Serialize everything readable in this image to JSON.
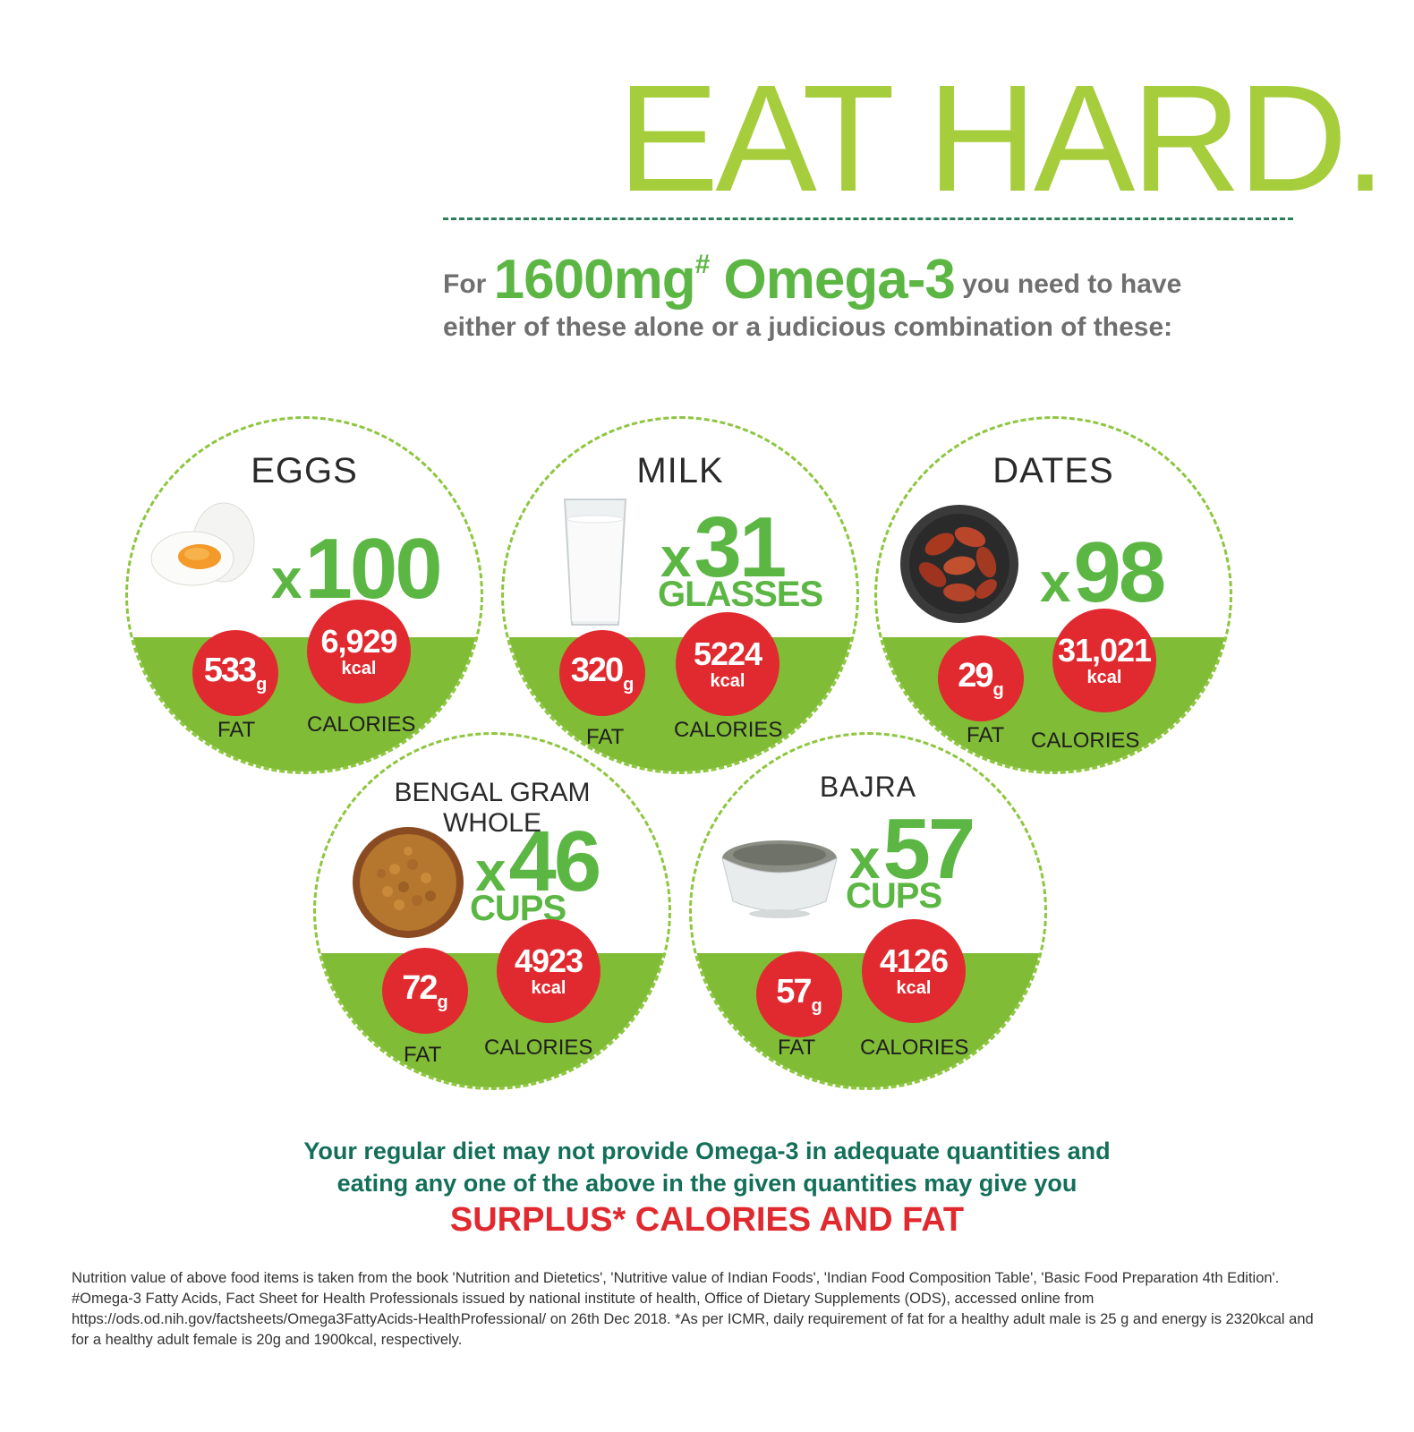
{
  "header": {
    "headline": "EAT HARD.",
    "intro_prefix": "For",
    "intro_amount": "1600mg",
    "intro_mark": "#",
    "intro_nutrient": "Omega-3",
    "intro_suffix": "you need to have",
    "intro_line2": "either of these alone or a judicious combination of these:"
  },
  "foods": [
    {
      "name": "EGGS",
      "x": "x",
      "count": "100",
      "unit": "",
      "fat_value": "533",
      "fat_unit": "g",
      "fat_label": "FAT",
      "cal_value": "6,929",
      "cal_unit": "kcal",
      "cal_label": "CALORIES",
      "icon": "eggs-icon"
    },
    {
      "name": "MILK",
      "x": "x",
      "count": "31",
      "unit": "GLASSES",
      "fat_value": "320",
      "fat_unit": "g",
      "fat_label": "FAT",
      "cal_value": "5224",
      "cal_unit": "kcal",
      "cal_label": "CALORIES",
      "icon": "milk-glass-icon"
    },
    {
      "name": "DATES",
      "x": "x",
      "count": "98",
      "unit": "",
      "fat_value": "29",
      "fat_unit": "g",
      "fat_label": "FAT",
      "cal_value": "31,021",
      "cal_unit": "kcal",
      "cal_label": "CALORIES",
      "icon": "dates-bowl-icon"
    },
    {
      "name_line1": "BENGAL GRAM",
      "name_line2": "WHOLE",
      "x": "x",
      "count": "46",
      "unit": "CUPS",
      "fat_value": "72",
      "fat_unit": "g",
      "fat_label": "FAT",
      "cal_value": "4923",
      "cal_unit": "kcal",
      "cal_label": "CALORIES",
      "icon": "bengal-gram-bowl-icon"
    },
    {
      "name": "BAJRA",
      "x": "x",
      "count": "57",
      "unit": "CUPS",
      "fat_value": "57",
      "fat_unit": "g",
      "fat_label": "FAT",
      "cal_value": "4126",
      "cal_unit": "kcal",
      "cal_label": "CALORIES",
      "icon": "bajra-bowl-icon"
    }
  ],
  "message": {
    "line1": "Your regular diet may not provide Omega-3 in adequate quantities and",
    "line2": "eating any one of the above in the given quantities may give you",
    "surplus": "SURPLUS* CALORIES AND FAT"
  },
  "footnote": "Nutrition value of above food items is taken from the book 'Nutrition and Dietetics', 'Nutritive value of Indian Foods', 'Indian Food Composition Table', 'Basic Food Preparation 4th Edition'. #Omega-3 Fatty Acids, Fact Sheet for Health Professionals issued by national institute of health, Office of Dietary Supplements (ODS), accessed online from https://ods.od.nih.gov/factsheets/Omega3FattyAcids-HealthProfessional/ on 26th Dec 2018. *As per ICMR, daily requirement of fat for a healthy adult male is 25 g and energy is 2320kcal and for a healthy adult female is 20g and 1900kcal, respectively.",
  "colors": {
    "green": "#5cb644",
    "band": "#80bc35",
    "red": "#e02a2f",
    "teal": "#136f5a"
  }
}
